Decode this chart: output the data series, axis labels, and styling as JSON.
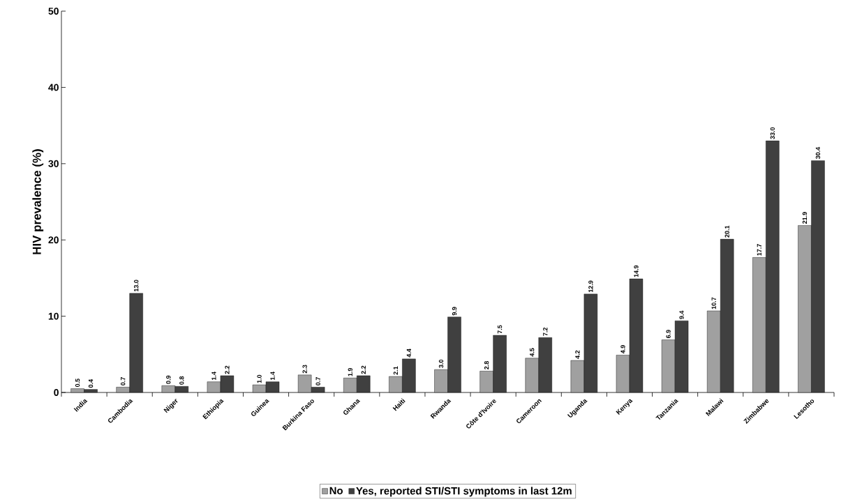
{
  "chart_data": {
    "type": "bar",
    "ylabel": "HIV prevalence (%)",
    "categories": [
      "India",
      "Cambodia",
      "Niger",
      "Ethiopia",
      "Guinea",
      "Burkina Faso",
      "Ghana",
      "Haiti",
      "Rwanda",
      "Côte d'Ivoire",
      "Cameroon",
      "Uganda",
      "Kenya",
      "Tanzania",
      "Malawi",
      "Zimbabwe",
      "Lesotho"
    ],
    "series": [
      {
        "name": "No",
        "color": "#a0a0a0",
        "values": [
          0.5,
          0.7,
          0.9,
          1.4,
          1.0,
          2.3,
          1.9,
          2.1,
          3.0,
          2.8,
          4.5,
          4.2,
          4.9,
          6.9,
          10.7,
          17.7,
          21.9
        ],
        "value_labels": [
          "0.5",
          "0.7",
          "0.9",
          "1.4",
          "1.0",
          "2.3",
          "1.9",
          "2.1",
          "3.0",
          "2.8",
          "4.5",
          "4.2",
          "4.9",
          "6.9",
          "10.7",
          "17.7",
          "21.9"
        ]
      },
      {
        "name": "Yes, reported STI/STI symptoms in last 12m",
        "color": "#404040",
        "values": [
          0.4,
          13.0,
          0.8,
          2.2,
          1.4,
          0.7,
          2.2,
          4.4,
          9.9,
          7.5,
          7.2,
          12.9,
          14.9,
          9.4,
          20.1,
          33.0,
          30.4
        ],
        "value_labels": [
          "0.4",
          "13.0",
          "0.8",
          "2.2",
          "1.4",
          "0.7",
          "2.2",
          "4.4",
          "9.9",
          "7.5",
          "7.2",
          "12.9",
          "14.9",
          "9.4",
          "20.1",
          "33.0",
          "30.4"
        ]
      }
    ],
    "ylim": [
      0,
      50
    ],
    "yticks": [
      0,
      10,
      20,
      30,
      40,
      50
    ],
    "grid": false,
    "legend": "bottom"
  }
}
